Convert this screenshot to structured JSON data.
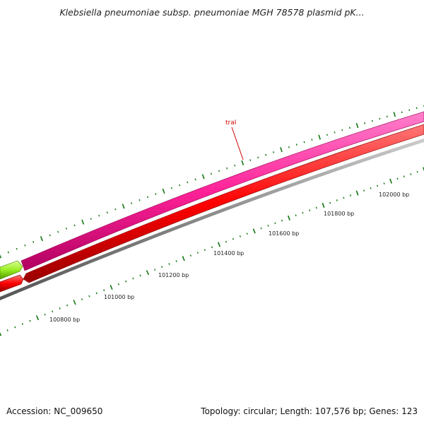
{
  "title": "Klebsiella pneumoniae subsp. pneumoniae MGH 78578 plasmid pK...",
  "footer": {
    "accession": "Accession: NC_009650",
    "summary": "Topology: circular; Length: 107,576 bp; Genes: 123"
  },
  "map": {
    "gene_label": "traI",
    "ruler_labels": [
      "100800 bp",
      "101000 bp",
      "101200 bp",
      "101400 bp",
      "101600 bp",
      "101800 bp",
      "102000 bp"
    ],
    "colors": {
      "forward_gene": "#ff33aa",
      "forward_gene_start": "#aaff22",
      "reverse_gene": "#ff1111",
      "backbone": "#999999",
      "ticks": "#117711",
      "gene_label": "#cc0000"
    }
  }
}
